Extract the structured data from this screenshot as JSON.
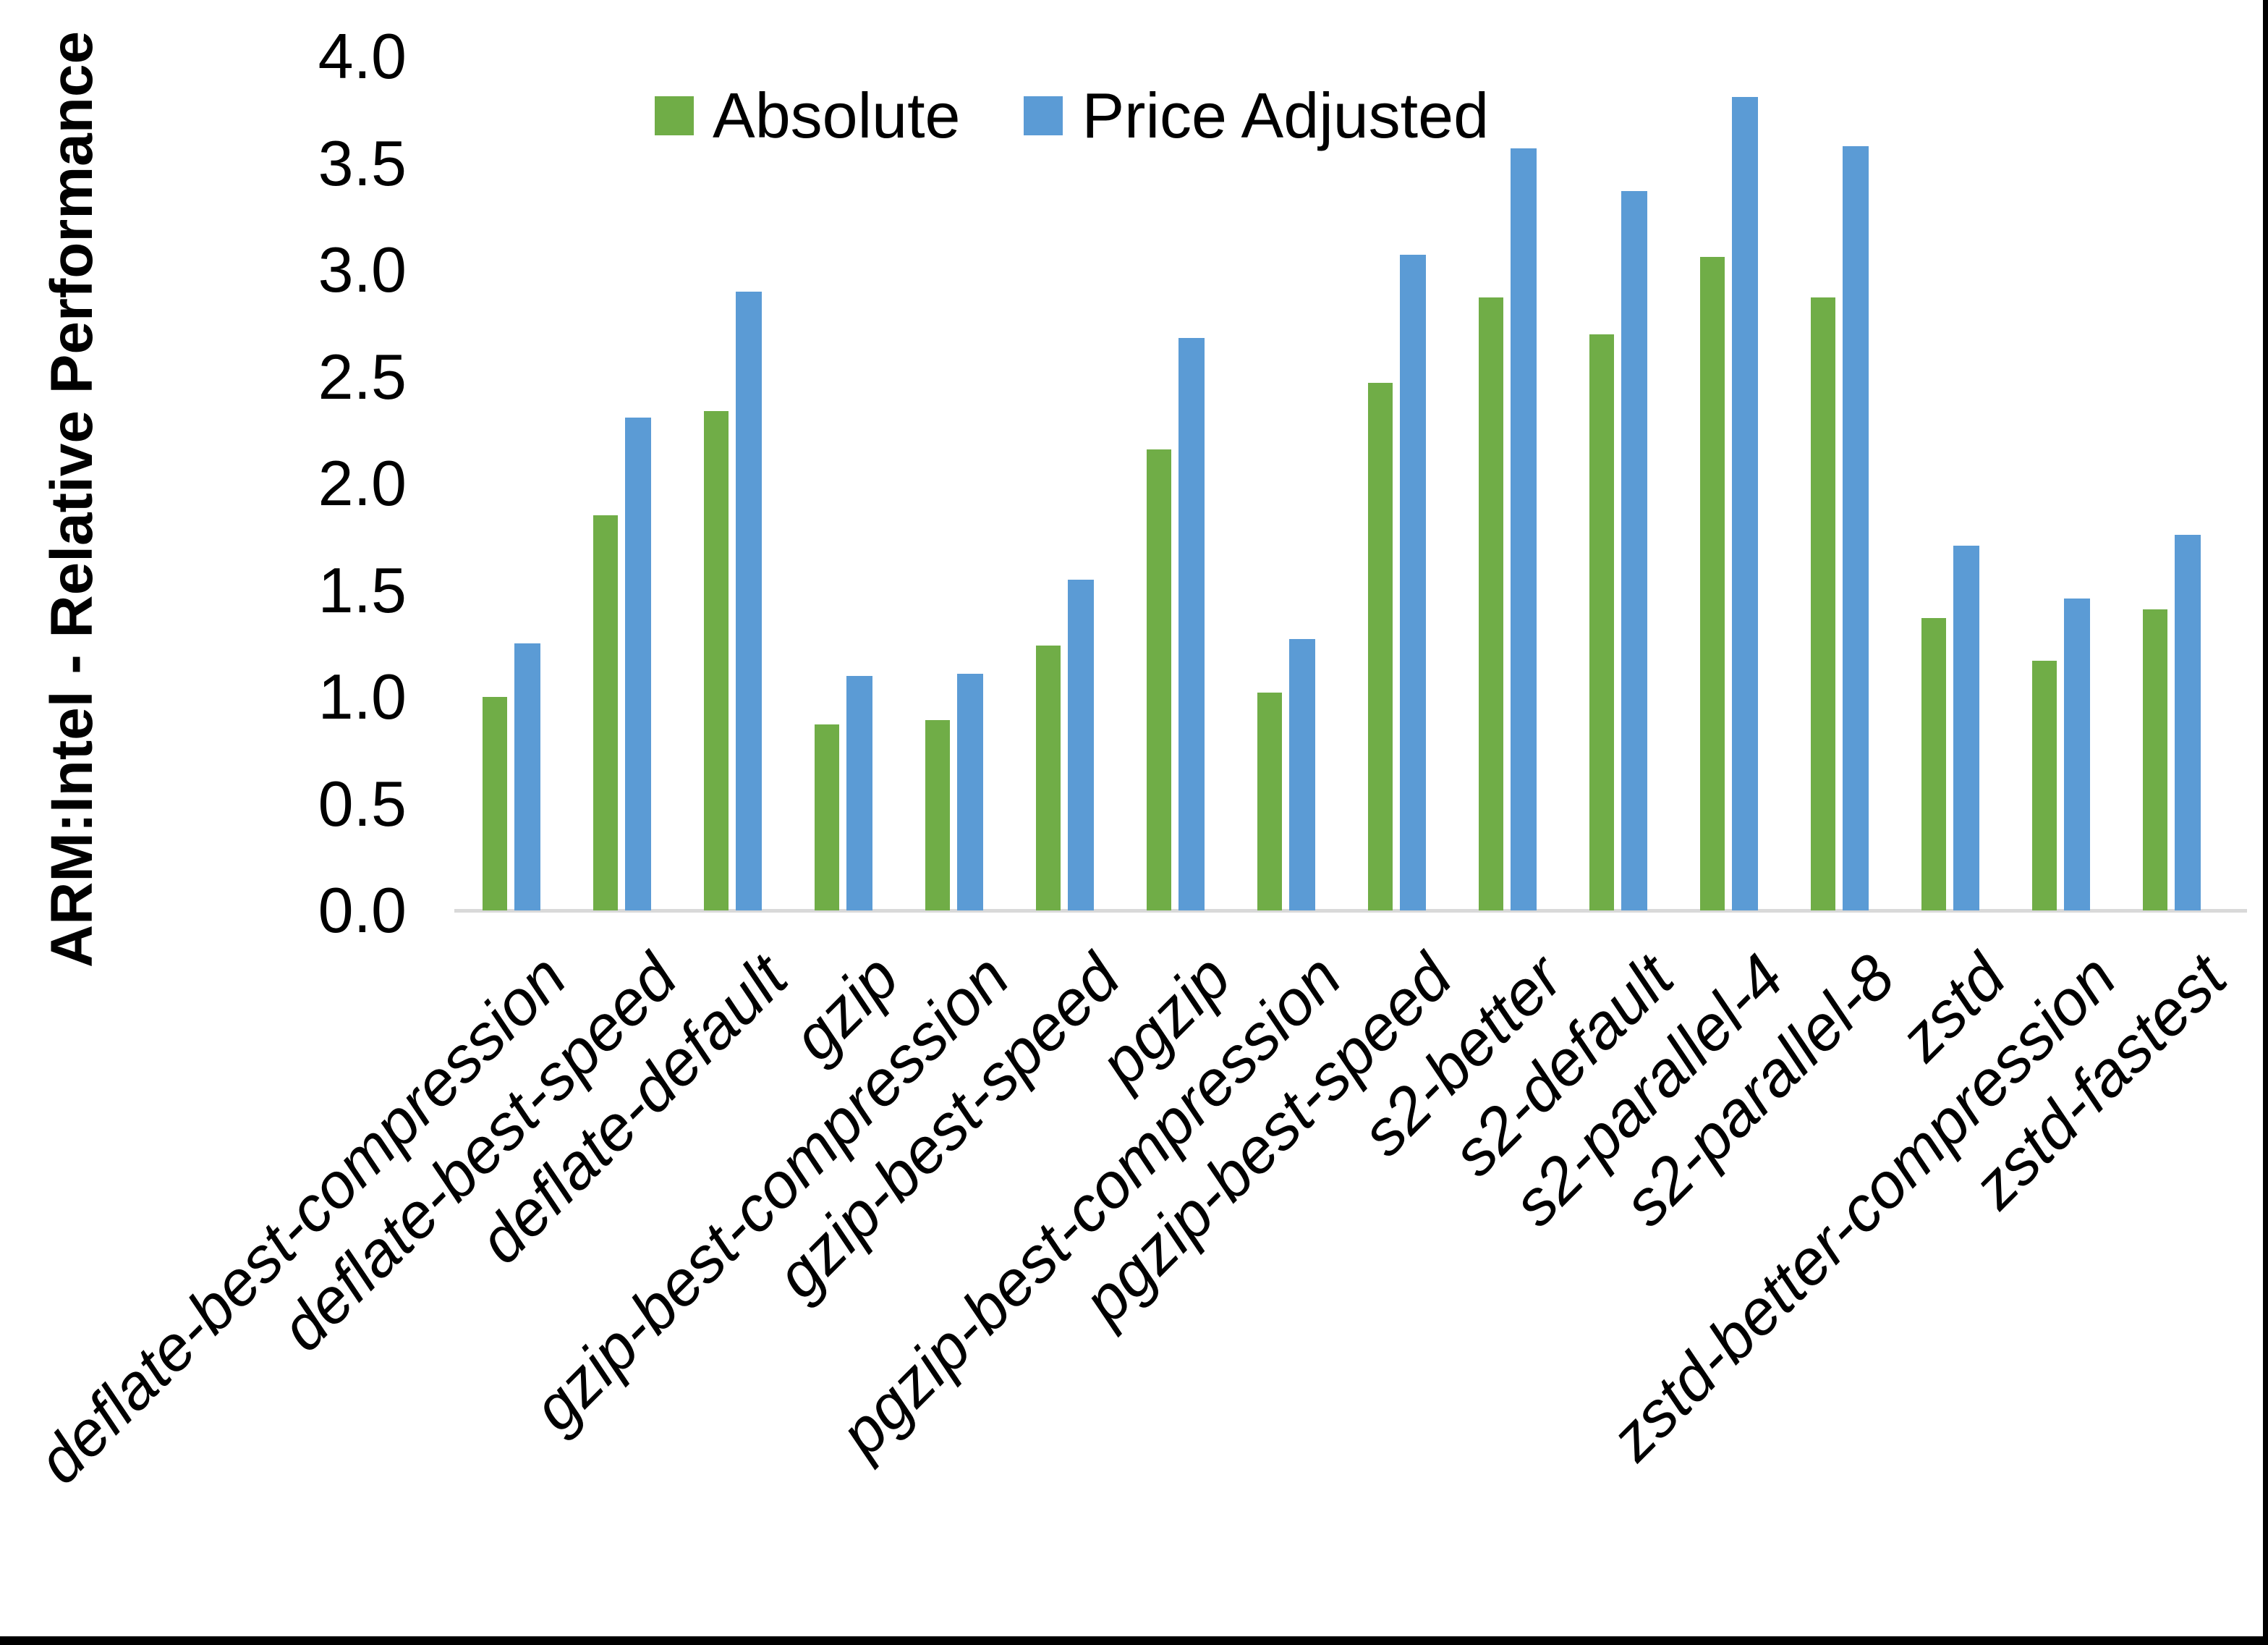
{
  "y_axis": {
    "title": "ARM:Intel - Relative Performance",
    "tick_labels": [
      "4.0",
      "3.5",
      "3.0",
      "2.5",
      "2.0",
      "1.5",
      "1.0",
      "0.5",
      "0.0"
    ]
  },
  "colors": {
    "absolute_green": "#70AD47",
    "price_adjusted_blue": "#5B9BD5",
    "axis_line_gray": "#D9D9D9",
    "edge_black": "#000000"
  },
  "chart_data": {
    "type": "bar",
    "title": "",
    "xlabel": "",
    "ylabel": "ARM:Intel - Relative Performance",
    "ylim": [
      0.0,
      4.0
    ],
    "ytick_step": 0.5,
    "grid": false,
    "legend_position": "top-center",
    "categories": [
      "deflate-best-compression",
      "deflate-best-speed",
      "deflate-default",
      "gzip",
      "gzip-best-compression",
      "gzip-best-speed",
      "pgzip",
      "pgzip-best-compression",
      "pgzip-best-speed",
      "s2-better",
      "s2-default",
      "s2-parallel-4",
      "s2-parallel-8",
      "zstd",
      "zstd-better-compression",
      "zstd-fastest"
    ],
    "series": [
      {
        "name": "Absolute",
        "color": "#70AD47",
        "values": [
          1.0,
          1.85,
          2.34,
          0.87,
          0.89,
          1.24,
          2.16,
          1.02,
          2.47,
          2.87,
          2.7,
          3.06,
          2.87,
          1.37,
          1.17,
          1.41
        ]
      },
      {
        "name": "Price Adjusted",
        "color": "#5B9BD5",
        "values": [
          1.25,
          2.31,
          2.9,
          1.1,
          1.11,
          1.55,
          2.68,
          1.27,
          3.07,
          3.57,
          3.37,
          3.81,
          3.58,
          1.71,
          1.46,
          1.76
        ]
      }
    ]
  }
}
